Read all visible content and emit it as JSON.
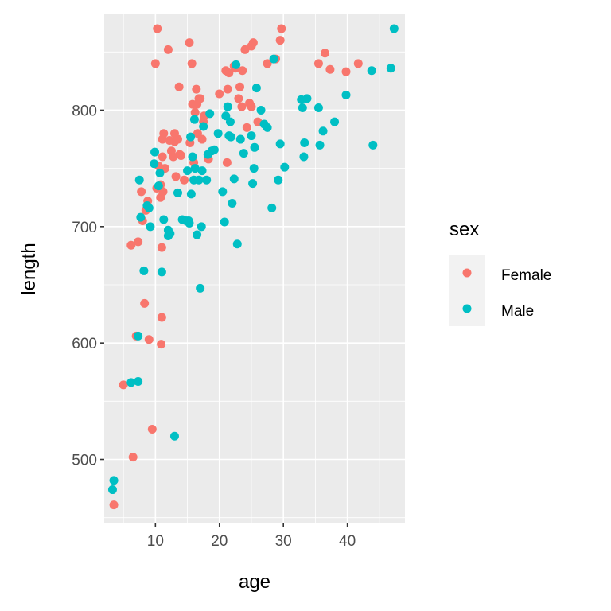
{
  "chart_data": {
    "type": "scatter",
    "xlabel": "age",
    "ylabel": "length",
    "xlim": [
      2.0,
      49.0
    ],
    "ylim": [
      445,
      883
    ],
    "x_ticks": [
      10,
      20,
      30,
      40
    ],
    "x_tick_labels": [
      "10",
      "20",
      "30",
      "40"
    ],
    "y_ticks": [
      500,
      600,
      700,
      800
    ],
    "y_tick_labels": [
      "500",
      "600",
      "700",
      "800"
    ],
    "grid": true,
    "legend": {
      "title": "sex",
      "position": "right"
    },
    "series": [
      {
        "name": "Female",
        "color": "#F8766D",
        "points": [
          [
            3.5,
            461
          ],
          [
            5.0,
            564
          ],
          [
            6.2,
            684
          ],
          [
            6.5,
            502
          ],
          [
            7.0,
            606
          ],
          [
            7.3,
            687
          ],
          [
            7.8,
            730
          ],
          [
            8.0,
            705
          ],
          [
            8.3,
            634
          ],
          [
            8.5,
            714
          ],
          [
            8.8,
            722
          ],
          [
            9.0,
            603
          ],
          [
            9.5,
            526
          ],
          [
            10.0,
            840
          ],
          [
            10.2,
            733
          ],
          [
            10.3,
            870
          ],
          [
            10.5,
            752
          ],
          [
            10.7,
            735
          ],
          [
            10.8,
            725
          ],
          [
            10.8,
            736
          ],
          [
            10.9,
            599
          ],
          [
            11.0,
            622
          ],
          [
            11.0,
            682
          ],
          [
            11.1,
            775
          ],
          [
            11.1,
            760
          ],
          [
            11.2,
            730
          ],
          [
            11.3,
            780
          ],
          [
            11.5,
            750
          ],
          [
            12.0,
            852
          ],
          [
            12.2,
            774
          ],
          [
            12.5,
            765
          ],
          [
            12.8,
            760
          ],
          [
            13.0,
            780
          ],
          [
            13.0,
            773
          ],
          [
            13.2,
            743
          ],
          [
            13.5,
            775
          ],
          [
            13.7,
            820
          ],
          [
            13.8,
            762
          ],
          [
            14.0,
            761
          ],
          [
            14.5,
            740
          ],
          [
            15.3,
            858
          ],
          [
            15.4,
            772
          ],
          [
            15.7,
            840
          ],
          [
            15.8,
            805
          ],
          [
            16.0,
            755
          ],
          [
            16.2,
            798
          ],
          [
            16.4,
            818
          ],
          [
            16.5,
            805
          ],
          [
            16.6,
            780
          ],
          [
            16.8,
            810
          ],
          [
            17.0,
            810
          ],
          [
            17.3,
            775
          ],
          [
            17.5,
            790
          ],
          [
            17.6,
            795
          ],
          [
            18.3,
            758
          ],
          [
            20.0,
            814
          ],
          [
            21.0,
            834
          ],
          [
            21.2,
            755
          ],
          [
            21.3,
            818
          ],
          [
            21.5,
            832
          ],
          [
            22.3,
            838
          ],
          [
            22.5,
            836
          ],
          [
            23.0,
            810
          ],
          [
            23.2,
            820
          ],
          [
            23.5,
            803
          ],
          [
            23.6,
            834
          ],
          [
            24.0,
            852
          ],
          [
            24.3,
            785
          ],
          [
            24.7,
            806
          ],
          [
            25.0,
            803
          ],
          [
            25.0,
            855
          ],
          [
            25.3,
            858
          ],
          [
            26.0,
            790
          ],
          [
            27.5,
            840
          ],
          [
            28.8,
            844
          ],
          [
            29.5,
            860
          ],
          [
            29.7,
            870
          ],
          [
            35.5,
            840
          ],
          [
            36.5,
            849
          ],
          [
            37.3,
            835
          ],
          [
            39.8,
            833
          ],
          [
            41.7,
            840
          ]
        ]
      },
      {
        "name": "Male",
        "color": "#00BFC4",
        "points": [
          [
            3.3,
            474
          ],
          [
            3.5,
            482
          ],
          [
            6.2,
            566
          ],
          [
            7.3,
            567
          ],
          [
            7.3,
            606
          ],
          [
            7.5,
            740
          ],
          [
            7.7,
            708
          ],
          [
            8.2,
            662
          ],
          [
            8.7,
            718
          ],
          [
            9.0,
            716
          ],
          [
            9.2,
            700
          ],
          [
            9.8,
            754
          ],
          [
            9.9,
            764
          ],
          [
            10.5,
            735
          ],
          [
            10.7,
            746
          ],
          [
            11.0,
            661
          ],
          [
            11.3,
            706
          ],
          [
            12.0,
            692
          ],
          [
            12.0,
            697
          ],
          [
            12.1,
            694
          ],
          [
            12.3,
            694
          ],
          [
            13.0,
            520
          ],
          [
            13.5,
            729
          ],
          [
            14.2,
            706
          ],
          [
            14.8,
            705
          ],
          [
            15.0,
            748
          ],
          [
            15.2,
            705
          ],
          [
            15.3,
            703
          ],
          [
            15.5,
            777
          ],
          [
            15.6,
            728
          ],
          [
            15.8,
            760
          ],
          [
            16.0,
            740
          ],
          [
            16.1,
            792
          ],
          [
            16.2,
            750
          ],
          [
            16.5,
            693
          ],
          [
            16.8,
            740
          ],
          [
            17.0,
            647
          ],
          [
            17.2,
            700
          ],
          [
            17.3,
            748
          ],
          [
            17.5,
            786
          ],
          [
            18.0,
            740
          ],
          [
            18.2,
            762
          ],
          [
            18.5,
            797
          ],
          [
            18.8,
            765
          ],
          [
            19.2,
            766
          ],
          [
            19.8,
            780
          ],
          [
            20.5,
            730
          ],
          [
            20.8,
            704
          ],
          [
            21.0,
            795
          ],
          [
            21.3,
            803
          ],
          [
            21.5,
            778
          ],
          [
            21.7,
            790
          ],
          [
            21.8,
            777
          ],
          [
            22.0,
            720
          ],
          [
            22.3,
            741
          ],
          [
            22.6,
            839
          ],
          [
            22.8,
            685
          ],
          [
            23.3,
            775
          ],
          [
            23.8,
            763
          ],
          [
            25.0,
            778
          ],
          [
            25.2,
            737
          ],
          [
            25.4,
            750
          ],
          [
            25.5,
            768
          ],
          [
            25.8,
            819
          ],
          [
            26.5,
            800
          ],
          [
            27.0,
            788
          ],
          [
            27.5,
            785
          ],
          [
            28.2,
            716
          ],
          [
            28.5,
            844
          ],
          [
            29.2,
            740
          ],
          [
            29.5,
            771
          ],
          [
            30.2,
            751
          ],
          [
            32.8,
            809
          ],
          [
            33.0,
            802
          ],
          [
            33.2,
            760
          ],
          [
            33.3,
            772
          ],
          [
            33.7,
            810
          ],
          [
            35.5,
            802
          ],
          [
            35.7,
            770
          ],
          [
            36.2,
            782
          ],
          [
            38.0,
            790
          ],
          [
            39.8,
            813
          ],
          [
            43.8,
            834
          ],
          [
            44.0,
            770
          ],
          [
            46.8,
            836
          ],
          [
            47.3,
            870
          ]
        ]
      }
    ]
  }
}
